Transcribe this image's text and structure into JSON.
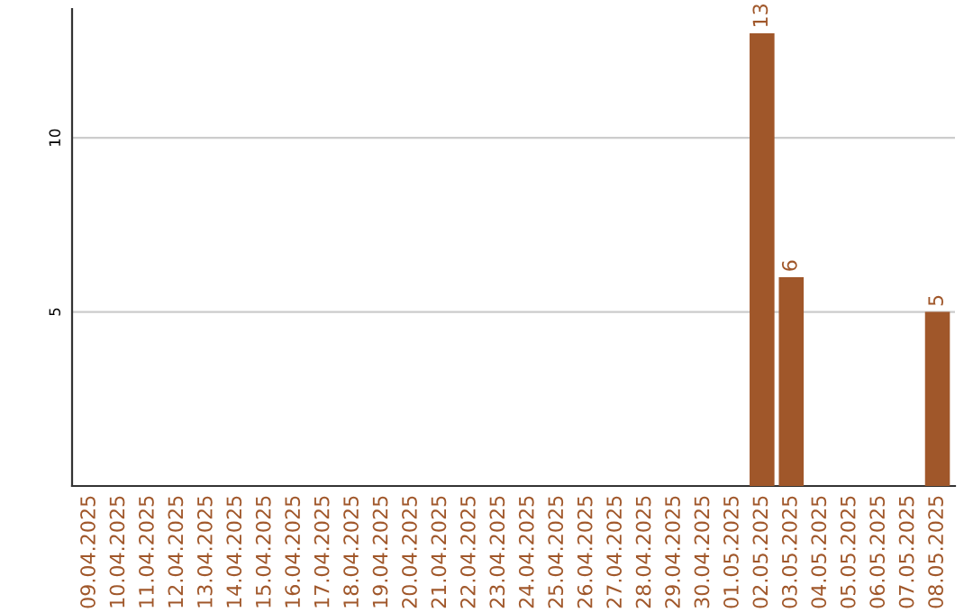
{
  "chart_data": {
    "type": "bar",
    "categories": [
      "09.04.2025",
      "10.04.2025",
      "11.04.2025",
      "12.04.2025",
      "13.04.2025",
      "14.04.2025",
      "15.04.2025",
      "16.04.2025",
      "17.04.2025",
      "18.04.2025",
      "19.04.2025",
      "20.04.2025",
      "21.04.2025",
      "22.04.2025",
      "23.04.2025",
      "24.04.2025",
      "25.04.2025",
      "26.04.2025",
      "27.04.2025",
      "28.04.2025",
      "29.04.2025",
      "30.04.2025",
      "01.05.2025",
      "02.05.2025",
      "03.05.2025",
      "04.05.2025",
      "05.05.2025",
      "06.05.2025",
      "07.05.2025",
      "08.05.2025"
    ],
    "values": [
      0,
      0,
      0,
      0,
      0,
      0,
      0,
      0,
      0,
      0,
      0,
      0,
      0,
      0,
      0,
      0,
      0,
      0,
      0,
      0,
      0,
      0,
      0,
      13,
      6,
      0,
      0,
      0,
      0,
      5
    ],
    "value_labels": [
      null,
      null,
      null,
      null,
      null,
      null,
      null,
      null,
      null,
      null,
      null,
      null,
      null,
      null,
      null,
      null,
      null,
      null,
      null,
      null,
      null,
      null,
      null,
      "13",
      "6",
      null,
      null,
      null,
      null,
      "5"
    ],
    "color": "#a0572a",
    "ylim": [
      0,
      13.7
    ],
    "yticks": [
      5,
      10
    ],
    "grid": "y"
  }
}
